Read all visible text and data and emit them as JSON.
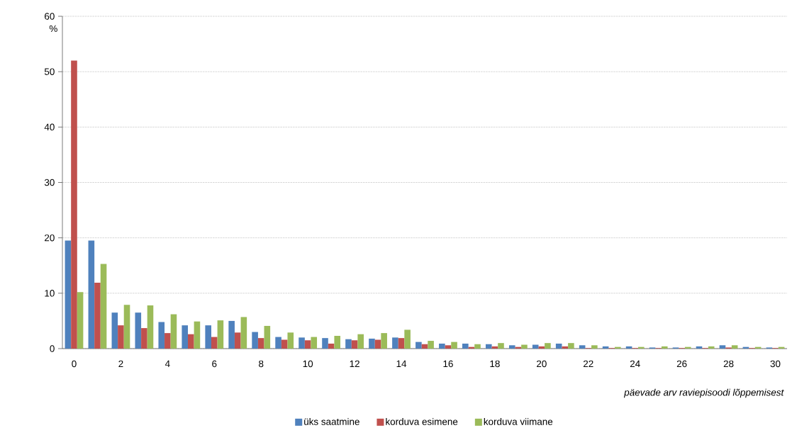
{
  "chart_data": {
    "type": "bar",
    "ylabel": "%",
    "xlabel": "päevade arv raviepisoodi lõppemisest",
    "categories": [
      "0",
      null,
      "2",
      null,
      "4",
      null,
      "6",
      null,
      "8",
      null,
      "10",
      null,
      "12",
      null,
      "14",
      null,
      "16",
      null,
      "18",
      null,
      "20",
      null,
      "22",
      null,
      "24",
      null,
      "26",
      null,
      "28",
      null,
      "30"
    ],
    "series": [
      {
        "name": "üks saatmine",
        "color": "#4f81bd",
        "values": [
          19.5,
          19.5,
          6.5,
          6.5,
          4.8,
          4.2,
          4.2,
          5.0,
          3.0,
          2.1,
          2.0,
          1.9,
          1.7,
          1.8,
          2.0,
          1.2,
          0.9,
          0.9,
          0.8,
          0.6,
          0.7,
          0.9,
          0.6,
          0.4,
          0.4,
          0.2,
          0.2,
          0.4,
          0.6,
          0.3,
          0.2
        ]
      },
      {
        "name": "korduva esimene",
        "color": "#c0504d",
        "values": [
          52,
          11.9,
          4.2,
          3.7,
          2.8,
          2.6,
          2.1,
          2.9,
          1.9,
          1.6,
          1.5,
          0.9,
          1.5,
          1.6,
          1.9,
          0.8,
          0.6,
          0.3,
          0.4,
          0.3,
          0.4,
          0.4,
          0.1,
          0.1,
          0.1,
          0.1,
          0.1,
          0.1,
          0.2,
          0.1,
          0.1
        ]
      },
      {
        "name": "korduva viimane",
        "color": "#9bbb59",
        "values": [
          10.2,
          15.3,
          7.9,
          7.8,
          6.2,
          4.9,
          5.1,
          5.7,
          4.1,
          2.9,
          2.1,
          2.3,
          2.6,
          2.8,
          3.4,
          1.4,
          1.2,
          0.8,
          1.0,
          0.7,
          1.0,
          1.0,
          0.6,
          0.3,
          0.3,
          0.4,
          0.3,
          0.4,
          0.6,
          0.3,
          0.3
        ]
      }
    ],
    "ylim": [
      0,
      60
    ],
    "yticks": [
      0,
      10,
      20,
      30,
      40,
      50,
      60
    ],
    "grid": "y",
    "legend": "bottom"
  }
}
